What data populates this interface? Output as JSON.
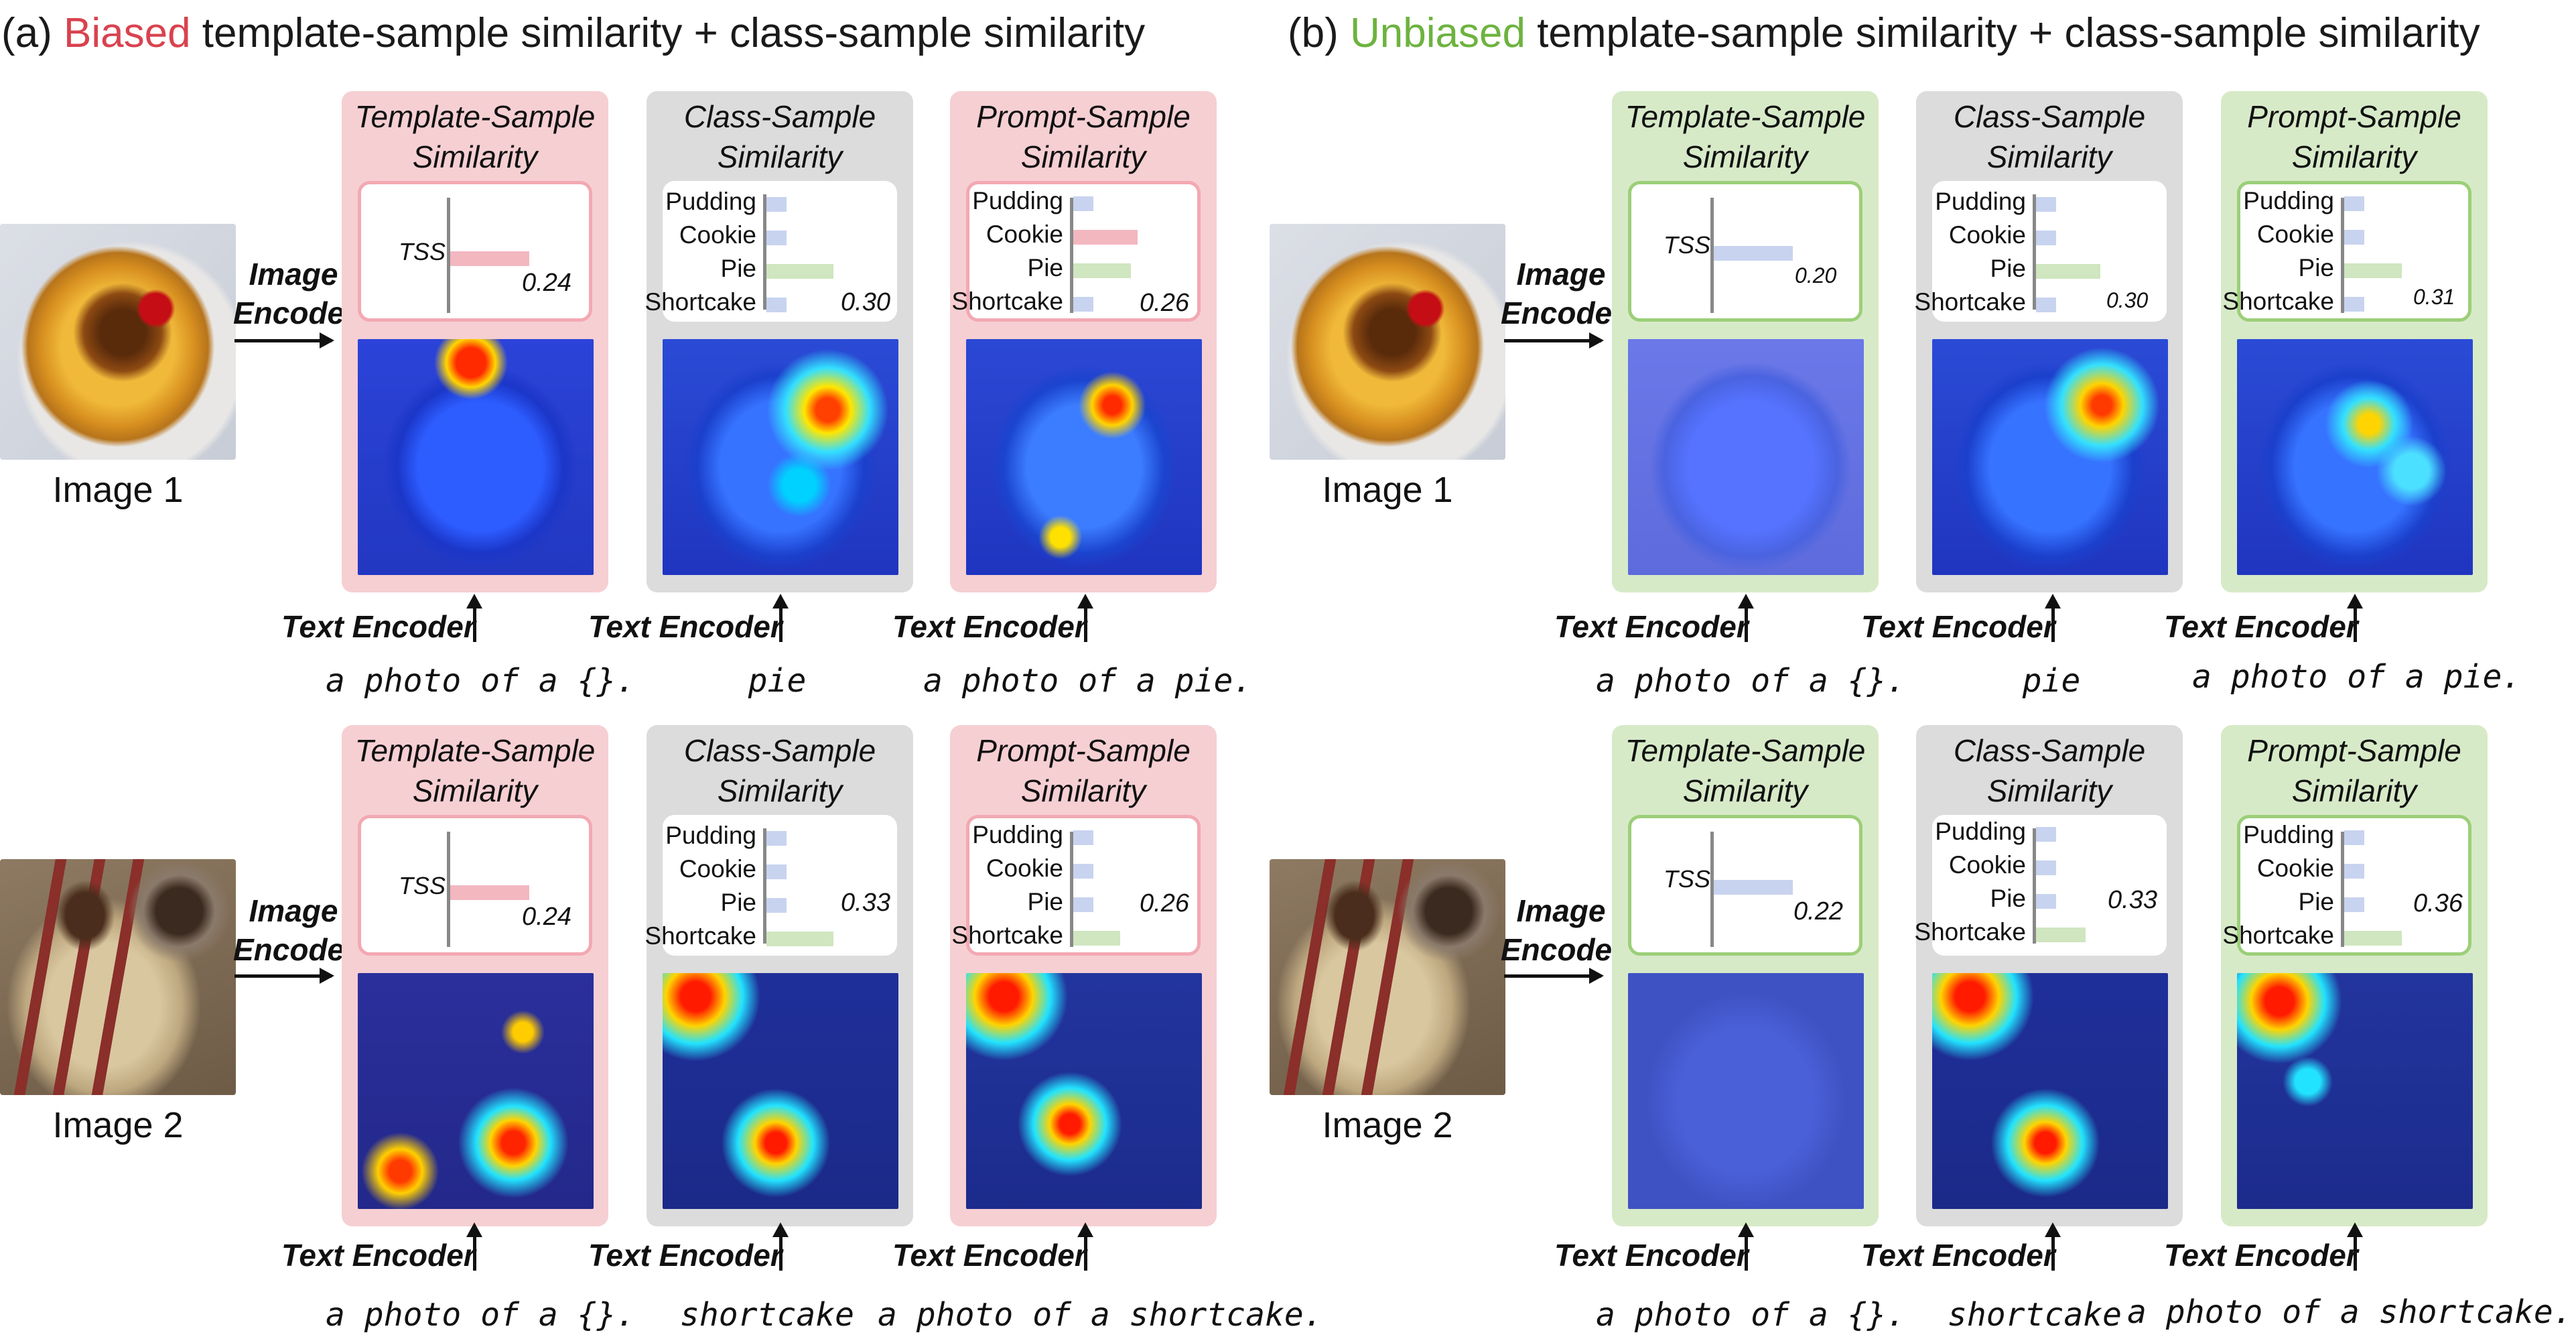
{
  "titles": {
    "a_prefix": "(a) ",
    "a_highlight": "Biased",
    "a_rest": " template-sample similarity + class-sample similarity",
    "b_prefix": "(b) ",
    "b_highlight": "Unbiased",
    "b_rest": " template-sample similarity + class-sample similarity"
  },
  "colors": {
    "biased": "#d9424f",
    "unbiased": "#6db33f"
  },
  "images": {
    "image1": "Image 1",
    "image2": "Image 2"
  },
  "labels": {
    "image_encoder": "Image Encoder",
    "text_encoder": "Text Encoder",
    "template_sample": "Template-Sample Similarity",
    "class_sample": "Class-Sample Similarity",
    "prompt_sample": "Prompt-Sample Similarity",
    "tss": "TSS"
  },
  "classes": [
    "Pudding",
    "Cookie",
    "Pie",
    "Shortcake"
  ],
  "prompts": {
    "template": "a photo of a {}.",
    "pie": "pie",
    "photo_pie": "a photo of a pie.",
    "shortcake": "shortcake",
    "photo_shortcake": "a photo of a shortcake."
  },
  "values": {
    "a_row1": {
      "tss": "0.24",
      "css": "0.30",
      "pss": "0.26"
    },
    "a_row2": {
      "tss": "0.24",
      "css": "0.33",
      "pss": "0.26"
    },
    "b_row1": {
      "tss": "0.20",
      "css": "0.30",
      "pss": "0.31"
    },
    "b_row2": {
      "tss": "0.22",
      "css": "0.33",
      "pss": "0.36"
    }
  }
}
